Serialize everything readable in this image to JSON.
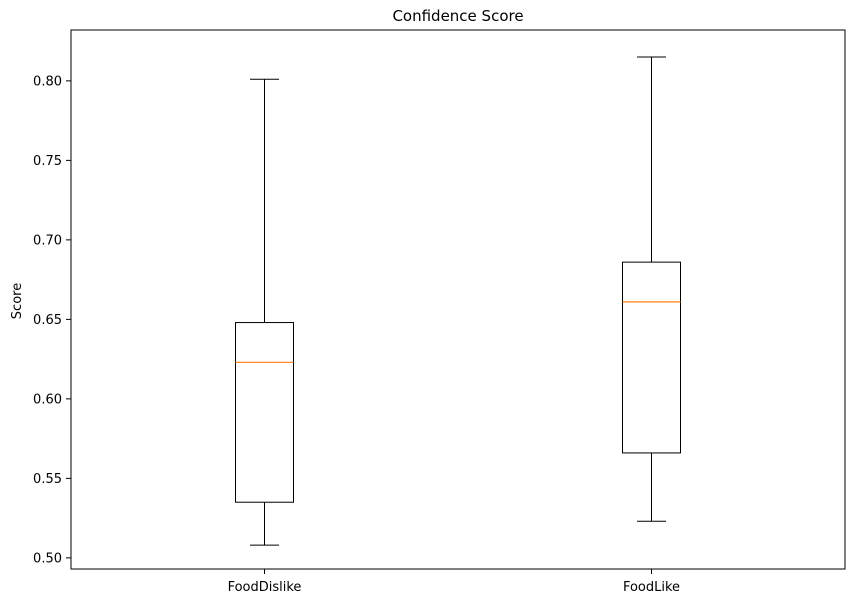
{
  "chart_data": {
    "type": "box",
    "title": "Confidence Score",
    "xlabel": "",
    "ylabel": "Score",
    "ylim": [
      0.493,
      0.832
    ],
    "yticks": [
      "0.50",
      "0.55",
      "0.60",
      "0.65",
      "0.70",
      "0.75",
      "0.80"
    ],
    "categories": [
      "FoodDislike",
      "FoodLike"
    ],
    "boxes": [
      {
        "whisker_low": 0.508,
        "q1": 0.535,
        "median": 0.623,
        "q3": 0.648,
        "whisker_high": 0.801
      },
      {
        "whisker_low": 0.523,
        "q1": 0.566,
        "median": 0.661,
        "q3": 0.686,
        "whisker_high": 0.815
      }
    ],
    "grid": false,
    "colors": {
      "box": "#000000",
      "median": "#ff7f0e"
    }
  }
}
